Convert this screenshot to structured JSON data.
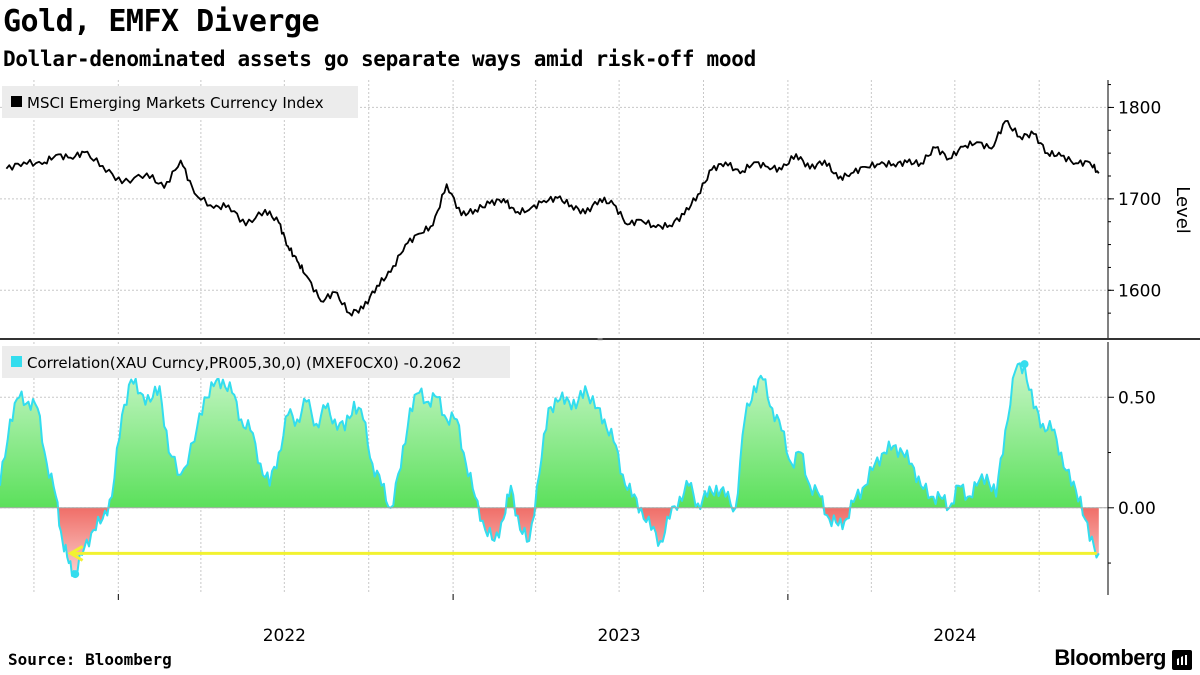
{
  "title": "Gold, EMFX Diverge",
  "subtitle": "Dollar-denominated assets go separate ways amid risk-off mood",
  "source": "Source: Bloomberg",
  "brand": "Bloomberg",
  "chart_data": [
    {
      "type": "line",
      "legend": "MSCI Emerging Markets Currency Index",
      "ylabel": "Level",
      "ylim": [
        1550,
        1830
      ],
      "yticks": [
        "1800",
        "1700",
        "1600"
      ],
      "xticks": [
        "2022",
        "2023",
        "2024"
      ],
      "color": "#000000",
      "series": [
        {
          "name": "MSCI Emerging Markets Currency Index",
          "x": [
            "2021-09-01",
            "2021-09-20",
            "2021-10-10",
            "2021-10-25",
            "2021-11-10",
            "2021-11-25",
            "2021-12-15",
            "2022-01-05",
            "2022-02-01",
            "2022-02-20",
            "2022-03-10",
            "2022-03-25",
            "2022-04-15",
            "2022-05-01",
            "2022-05-20",
            "2022-06-10",
            "2022-06-25",
            "2022-07-05",
            "2022-07-15",
            "2022-07-25",
            "2022-08-10",
            "2022-08-25",
            "2022-09-10",
            "2022-09-25",
            "2022-10-10",
            "2022-10-25",
            "2022-11-10",
            "2022-11-25",
            "2022-12-10",
            "2022-12-25",
            "2023-01-10",
            "2023-01-25",
            "2023-02-10",
            "2023-02-25",
            "2023-03-10",
            "2023-03-25",
            "2023-04-10",
            "2023-04-25",
            "2023-05-10",
            "2023-05-25",
            "2023-06-10",
            "2023-06-25",
            "2023-07-10",
            "2023-07-25",
            "2023-08-10",
            "2023-08-25",
            "2023-09-10",
            "2023-09-25",
            "2023-10-10",
            "2023-10-25",
            "2023-11-10",
            "2023-11-25",
            "2023-12-10",
            "2023-12-25",
            "2024-01-10",
            "2024-01-25",
            "2024-02-10",
            "2024-02-25",
            "2024-03-10",
            "2024-03-25",
            "2024-04-10",
            "2024-04-25",
            "2024-05-10",
            "2024-05-25",
            "2024-06-10",
            "2024-06-25",
            "2024-07-10",
            "2024-07-25",
            "2024-08-10",
            "2024-08-25",
            "2024-09-10",
            "2024-09-25",
            "2024-10-10",
            "2024-10-25",
            "2024-11-10",
            "2024-11-25",
            "2024-12-05"
          ],
          "values": [
            1733,
            1740,
            1738,
            1748,
            1745,
            1751,
            1736,
            1717,
            1728,
            1712,
            1742,
            1706,
            1690,
            1693,
            1671,
            1688,
            1674,
            1648,
            1632,
            1616,
            1588,
            1598,
            1575,
            1580,
            1605,
            1620,
            1650,
            1662,
            1671,
            1716,
            1682,
            1688,
            1695,
            1700,
            1685,
            1688,
            1698,
            1701,
            1693,
            1684,
            1700,
            1694,
            1672,
            1677,
            1669,
            1671,
            1683,
            1705,
            1732,
            1740,
            1728,
            1740,
            1735,
            1732,
            1749,
            1733,
            1742,
            1722,
            1728,
            1735,
            1738,
            1738,
            1740,
            1739,
            1756,
            1744,
            1757,
            1762,
            1755,
            1785,
            1768,
            1771,
            1750,
            1747,
            1739,
            1740,
            1728
          ]
        }
      ]
    },
    {
      "type": "area",
      "legend": "Correlation(XAU Curncy,PR005,30,0) (MXEF0CX0) -0.2062",
      "ylim": [
        -0.39,
        0.75
      ],
      "yticks": [
        "0.50",
        "0.00"
      ],
      "xticks": [
        "2022",
        "2023",
        "2024"
      ],
      "positive_color": "#7be87b",
      "negative_color": "#f28b86",
      "line_color": "#33ddee",
      "annotation": "arrow at -0.2062 pointing back to 2021 low",
      "annotation_color": "#f2f230",
      "series": [
        {
          "name": "Correlation",
          "x": [
            "2021-08-25",
            "2021-09-05",
            "2021-09-15",
            "2021-09-25",
            "2021-10-05",
            "2021-10-15",
            "2021-10-25",
            "2021-11-01",
            "2021-11-08",
            "2021-11-15",
            "2021-11-25",
            "2021-12-05",
            "2021-12-15",
            "2021-12-25",
            "2022-01-05",
            "2022-01-15",
            "2022-01-25",
            "2022-02-05",
            "2022-02-15",
            "2022-02-25",
            "2022-03-10",
            "2022-03-25",
            "2022-04-05",
            "2022-04-15",
            "2022-04-25",
            "2022-05-05",
            "2022-05-15",
            "2022-05-25",
            "2022-06-05",
            "2022-06-15",
            "2022-06-25",
            "2022-07-05",
            "2022-07-15",
            "2022-07-25",
            "2022-08-05",
            "2022-08-15",
            "2022-08-25",
            "2022-09-05",
            "2022-09-15",
            "2022-09-25",
            "2022-10-05",
            "2022-10-15",
            "2022-10-25",
            "2022-11-05",
            "2022-11-15",
            "2022-11-25",
            "2022-12-05",
            "2022-12-15",
            "2022-12-25",
            "2023-01-05",
            "2023-01-15",
            "2023-01-25",
            "2023-02-05",
            "2023-02-15",
            "2023-02-25",
            "2023-03-05",
            "2023-03-15",
            "2023-03-25",
            "2023-04-05",
            "2023-04-15",
            "2023-04-25",
            "2023-05-05",
            "2023-05-15",
            "2023-05-25",
            "2023-06-05",
            "2023-06-15",
            "2023-06-25",
            "2023-07-05",
            "2023-07-15",
            "2023-07-25",
            "2023-08-05",
            "2023-08-15",
            "2023-08-25",
            "2023-09-05",
            "2023-09-15",
            "2023-09-25",
            "2023-10-05",
            "2023-10-15",
            "2023-10-25",
            "2023-11-05",
            "2023-11-15",
            "2023-11-25",
            "2023-12-05",
            "2023-12-15",
            "2023-12-25",
            "2024-01-05",
            "2024-01-15",
            "2024-01-25",
            "2024-02-05",
            "2024-02-15",
            "2024-02-25",
            "2024-03-05",
            "2024-03-15",
            "2024-03-25",
            "2024-04-05",
            "2024-04-15",
            "2024-04-25",
            "2024-05-05",
            "2024-05-15",
            "2024-05-25",
            "2024-06-05",
            "2024-06-15",
            "2024-06-25",
            "2024-07-05",
            "2024-07-15",
            "2024-07-25",
            "2024-08-05",
            "2024-08-15",
            "2024-08-25",
            "2024-09-05",
            "2024-09-15",
            "2024-09-25",
            "2024-10-05",
            "2024-10-15",
            "2024-10-25",
            "2024-11-05",
            "2024-11-15",
            "2024-11-25",
            "2024-12-05"
          ],
          "values": [
            0.1,
            0.4,
            0.5,
            0.48,
            0.45,
            0.2,
            0.05,
            -0.15,
            -0.25,
            -0.3,
            -0.18,
            -0.1,
            -0.05,
            0.05,
            0.42,
            0.58,
            0.52,
            0.48,
            0.55,
            0.25,
            0.15,
            0.3,
            0.5,
            0.55,
            0.58,
            0.52,
            0.4,
            0.35,
            0.2,
            0.1,
            0.25,
            0.42,
            0.4,
            0.48,
            0.38,
            0.45,
            0.4,
            0.35,
            0.48,
            0.4,
            0.2,
            0.1,
            0.0,
            0.18,
            0.45,
            0.52,
            0.48,
            0.5,
            0.4,
            0.4,
            0.2,
            0.05,
            -0.1,
            -0.15,
            -0.05,
            0.1,
            -0.1,
            -0.15,
            0.15,
            0.45,
            0.48,
            0.5,
            0.45,
            0.55,
            0.45,
            0.4,
            0.3,
            0.15,
            0.05,
            0.0,
            -0.1,
            -0.15,
            -0.05,
            0.05,
            0.1,
            0.02,
            0.05,
            0.1,
            0.05,
            0.0,
            0.4,
            0.55,
            0.58,
            0.45,
            0.35,
            0.2,
            0.25,
            0.1,
            0.05,
            -0.05,
            -0.08,
            -0.05,
            0.05,
            0.1,
            0.2,
            0.25,
            0.28,
            0.25,
            0.2,
            0.1,
            0.05,
            0.05,
            0.0,
            0.1,
            0.05,
            0.1,
            0.15,
            0.05,
            0.35,
            0.62,
            0.65,
            0.45,
            0.38,
            0.35,
            0.25,
            0.1,
            0.05,
            -0.15,
            -0.2062
          ]
        }
      ]
    }
  ]
}
